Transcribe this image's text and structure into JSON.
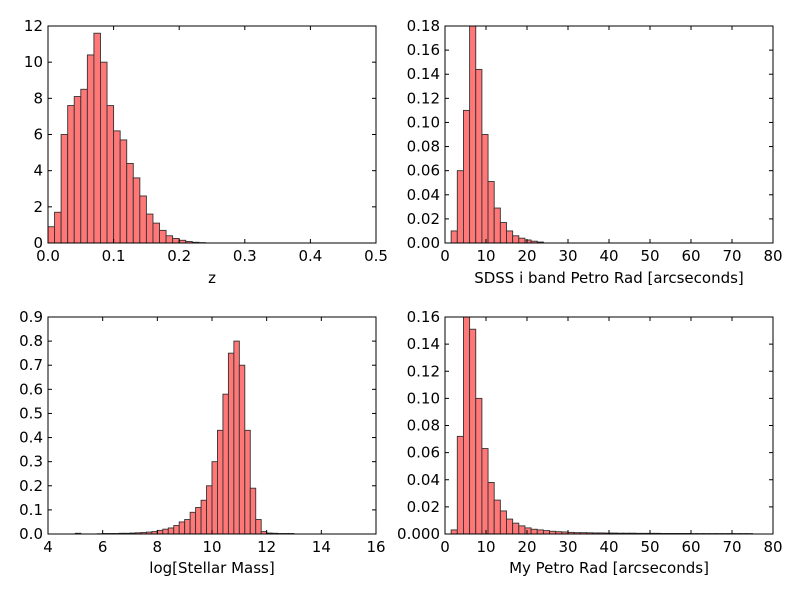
{
  "chart_data": [
    {
      "type": "bar",
      "xlabel": "z",
      "ylabel": "",
      "xlim": [
        0.0,
        0.5
      ],
      "ylim": [
        0,
        12
      ],
      "xticks": [
        "0.0",
        "0.1",
        "0.2",
        "0.3",
        "0.4",
        "0.5"
      ],
      "yticks": [
        "0",
        "2",
        "4",
        "6",
        "8",
        "10",
        "12"
      ],
      "bin_width": 0.01,
      "bins": [
        0.0,
        0.01,
        0.02,
        0.03,
        0.04,
        0.05,
        0.06,
        0.07,
        0.08,
        0.09,
        0.1,
        0.11,
        0.12,
        0.13,
        0.14,
        0.15,
        0.16,
        0.17,
        0.18,
        0.19,
        0.2,
        0.21,
        0.22,
        0.23
      ],
      "values": [
        0.9,
        1.7,
        6.0,
        7.6,
        8.1,
        8.5,
        10.4,
        11.6,
        10.0,
        7.6,
        6.2,
        5.7,
        4.4,
        3.6,
        2.6,
        1.6,
        1.1,
        0.7,
        0.4,
        0.25,
        0.15,
        0.08,
        0.04,
        0.02
      ],
      "grid": false
    },
    {
      "type": "bar",
      "xlabel": "SDSS i band Petro Rad [arcseconds]",
      "ylabel": "",
      "xlim": [
        0,
        80
      ],
      "ylim": [
        0,
        0.18
      ],
      "xticks": [
        "0",
        "10",
        "20",
        "30",
        "40",
        "50",
        "60",
        "70",
        "80"
      ],
      "yticks": [
        "0.00",
        "0.02",
        "0.04",
        "0.06",
        "0.08",
        "0.10",
        "0.12",
        "0.14",
        "0.16",
        "0.18"
      ],
      "bin_width": 1.5,
      "bins": [
        1.5,
        3.0,
        4.5,
        6.0,
        7.5,
        9.0,
        10.5,
        12.0,
        13.5,
        15.0,
        16.5,
        18.0,
        19.5,
        21.0,
        22.5
      ],
      "values": [
        0.01,
        0.06,
        0.11,
        0.18,
        0.144,
        0.09,
        0.051,
        0.029,
        0.017,
        0.01,
        0.006,
        0.004,
        0.0025,
        0.0015,
        0.0008
      ],
      "grid": false
    },
    {
      "type": "bar",
      "xlabel": "log[Stellar Mass]",
      "ylabel": "",
      "xlim": [
        4,
        16
      ],
      "ylim": [
        0,
        0.9
      ],
      "xticks": [
        "4",
        "6",
        "8",
        "10",
        "12",
        "14",
        "16"
      ],
      "yticks": [
        "0.0",
        "0.1",
        "0.2",
        "0.3",
        "0.4",
        "0.5",
        "0.6",
        "0.7",
        "0.8",
        "0.9"
      ],
      "bin_width": 0.2,
      "bins": [
        5.0,
        5.2,
        5.4,
        5.6,
        5.8,
        6.0,
        6.2,
        6.4,
        6.6,
        6.8,
        7.0,
        7.2,
        7.4,
        7.6,
        7.8,
        8.0,
        8.2,
        8.4,
        8.6,
        8.8,
        9.0,
        9.2,
        9.4,
        9.6,
        9.8,
        10.0,
        10.2,
        10.4,
        10.6,
        10.8,
        11.0,
        11.2,
        11.4,
        11.6,
        11.8,
        12.0,
        12.2,
        12.4,
        12.6,
        12.8
      ],
      "values": [
        0.003,
        0.0,
        0.0,
        0.0,
        0.001,
        0.002,
        0.002,
        0.002,
        0.003,
        0.003,
        0.004,
        0.005,
        0.006,
        0.008,
        0.01,
        0.015,
        0.02,
        0.025,
        0.035,
        0.05,
        0.06,
        0.09,
        0.11,
        0.14,
        0.2,
        0.3,
        0.43,
        0.58,
        0.75,
        0.8,
        0.7,
        0.43,
        0.19,
        0.06,
        0.01,
        0.004,
        0.003,
        0.002,
        0.002,
        0.002
      ],
      "grid": false
    },
    {
      "type": "bar",
      "xlabel": "My Petro Rad [arcseconds]",
      "ylabel": "",
      "xlim": [
        0,
        80
      ],
      "ylim": [
        0,
        0.16
      ],
      "xticks": [
        "0",
        "10",
        "20",
        "30",
        "40",
        "50",
        "60",
        "70",
        "80"
      ],
      "yticks": [
        "0.000",
        "0.02",
        "0.04",
        "0.06",
        "0.08",
        "0.10",
        "0.12",
        "0.14",
        "0.16"
      ],
      "bin_width": 1.5,
      "bins": [
        1.5,
        3.0,
        4.5,
        6.0,
        7.5,
        9.0,
        10.5,
        12.0,
        13.5,
        15.0,
        16.5,
        18.0,
        19.5,
        21.0,
        22.5,
        24.0,
        25.5,
        27.0,
        28.5,
        30.0,
        31.5,
        33.0,
        34.5,
        36.0,
        37.5,
        39.0,
        40.5,
        42.0,
        43.5,
        45.0,
        46.5,
        48.0,
        49.5,
        51.0,
        52.5,
        54.0,
        55.5,
        57.0,
        58.5,
        60.0,
        61.5,
        63.0,
        64.5,
        66.0,
        67.5,
        69.0,
        70.5,
        72.0,
        73.5
      ],
      "values": [
        0.003,
        0.072,
        0.16,
        0.151,
        0.1,
        0.063,
        0.038,
        0.025,
        0.017,
        0.011,
        0.008,
        0.006,
        0.0045,
        0.0035,
        0.003,
        0.0025,
        0.002,
        0.0017,
        0.0015,
        0.0012,
        0.001,
        0.001,
        0.0009,
        0.0008,
        0.0008,
        0.0007,
        0.0007,
        0.0006,
        0.0006,
        0.0006,
        0.0005,
        0.0005,
        0.0005,
        0.0005,
        0.0004,
        0.0004,
        0.0004,
        0.0004,
        0.0004,
        0.0003,
        0.0003,
        0.0003,
        0.0003,
        0.0003,
        0.0003,
        0.0003,
        0.0003,
        0.0003,
        0.0003
      ],
      "grid": false
    }
  ],
  "colors": {
    "bar_fill": "#ff7777",
    "bar_edge": "#333333",
    "frame": "#000000",
    "background": "#ffffff"
  }
}
